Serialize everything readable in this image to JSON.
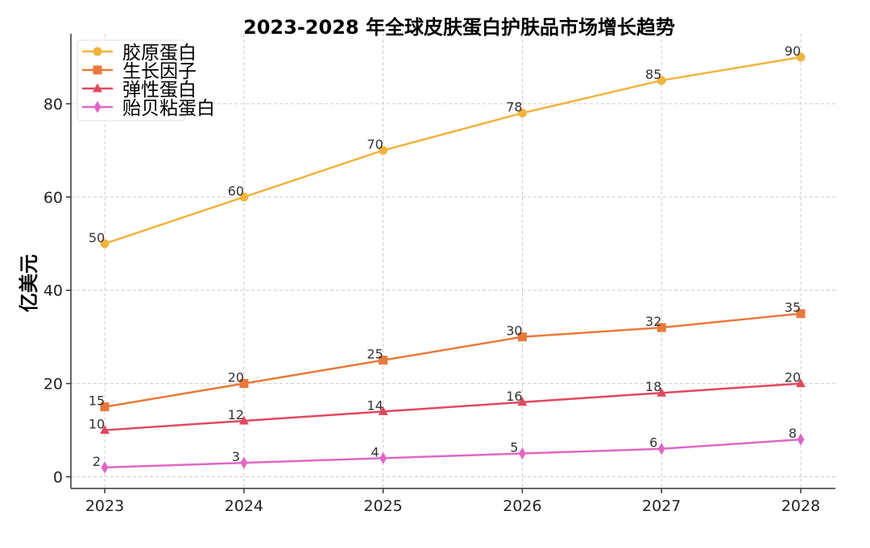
{
  "chart_data": {
    "type": "line",
    "title": "2023-2028 年全球皮肤蛋白护肤品市场增长趋势",
    "xlabel": "",
    "ylabel": "亿美元",
    "categories": [
      "2023",
      "2024",
      "2025",
      "2026",
      "2027",
      "2028"
    ],
    "ylim": [
      -2.5,
      95
    ],
    "yticks": [
      0,
      20,
      40,
      60,
      80
    ],
    "grid": true,
    "legend": "upper-left",
    "series": [
      {
        "name": "胶原蛋白",
        "values": [
          50,
          60,
          70,
          78,
          85,
          90
        ],
        "color": "#f2b33d",
        "marker": "circle"
      },
      {
        "name": "生长因子",
        "values": [
          15,
          20,
          25,
          30,
          32,
          35
        ],
        "color": "#e8793a",
        "marker": "square"
      },
      {
        "name": "弹性蛋白",
        "values": [
          10,
          12,
          14,
          16,
          18,
          20
        ],
        "color": "#e0485e",
        "marker": "triangle"
      },
      {
        "name": "贻贝粘蛋白",
        "values": [
          2,
          3,
          4,
          5,
          6,
          8
        ],
        "color": "#e067c4",
        "marker": "diamond"
      }
    ]
  }
}
